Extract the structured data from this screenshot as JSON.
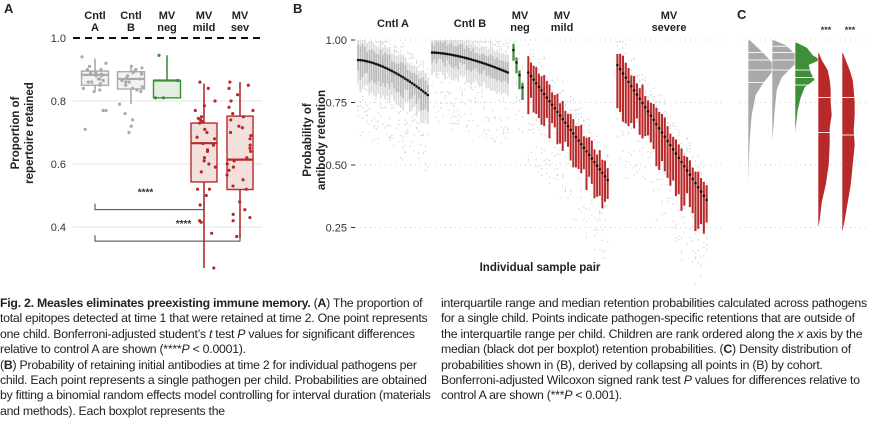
{
  "chart_data": [
    {
      "panel": "A",
      "type": "box",
      "ylabel": "Proportion of\nrepertoire retained",
      "ylim": [
        0.25,
        1.02
      ],
      "yticks": [
        1.0,
        0.8,
        0.6,
        0.4
      ],
      "ytick_labels": [
        "1.0",
        "0.8",
        "0.6",
        "0.4"
      ],
      "reference_line": 1.0,
      "categories": [
        {
          "label": "Cntl\nA",
          "color": "#aaaaaa",
          "fill": "#f2f2f2",
          "q1": 0.85,
          "median": 0.883,
          "q3": 0.895,
          "whisker_low": 0.833,
          "whisker_high": 0.935,
          "points": [
            0.94,
            0.92,
            0.91,
            0.9,
            0.9,
            0.89,
            0.89,
            0.885,
            0.88,
            0.88,
            0.87,
            0.87,
            0.865,
            0.86,
            0.86,
            0.855,
            0.85,
            0.84,
            0.835,
            0.83,
            0.77,
            0.77,
            0.71
          ]
        },
        {
          "label": "Cntl\nB",
          "color": "#aaaaaa",
          "fill": "#f2f2f2",
          "q1": 0.838,
          "median": 0.87,
          "q3": 0.893,
          "whisker_low": 0.79,
          "whisker_high": 0.905,
          "points": [
            0.91,
            0.905,
            0.9,
            0.895,
            0.89,
            0.89,
            0.885,
            0.88,
            0.875,
            0.87,
            0.87,
            0.865,
            0.86,
            0.86,
            0.85,
            0.845,
            0.84,
            0.835,
            0.83,
            0.79,
            0.76,
            0.74,
            0.72,
            0.7
          ]
        },
        {
          "label": "MV\nneg",
          "color": "#3f8f3a",
          "fill": "#e3ede0",
          "q1": 0.81,
          "median": 0.865,
          "q3": 0.865,
          "whisker_low": 0.81,
          "whisker_high": 0.945,
          "points": [
            0.945,
            0.865,
            0.81,
            0.81
          ]
        },
        {
          "label": "MV\nmild",
          "color": "#b82a2a",
          "fill": "#f3e0dc",
          "q1": 0.543,
          "median": 0.666,
          "q3": 0.73,
          "whisker_low": 0.27,
          "whisker_high": 0.855,
          "points": [
            0.86,
            0.84,
            0.8,
            0.785,
            0.77,
            0.75,
            0.745,
            0.74,
            0.735,
            0.73,
            0.71,
            0.7,
            0.685,
            0.68,
            0.665,
            0.66,
            0.645,
            0.64,
            0.62,
            0.61,
            0.6,
            0.59,
            0.575,
            0.52,
            0.52,
            0.5,
            0.47,
            0.42,
            0.415,
            0.38,
            0.27
          ]
        },
        {
          "label": "MV\nsev",
          "color": "#b82a2a",
          "fill": "#f3e0dc",
          "q1": 0.519,
          "median": 0.614,
          "q3": 0.752,
          "whisker_low": 0.365,
          "whisker_high": 0.86,
          "points": [
            0.86,
            0.85,
            0.84,
            0.82,
            0.8,
            0.78,
            0.77,
            0.76,
            0.75,
            0.74,
            0.72,
            0.715,
            0.7,
            0.69,
            0.68,
            0.66,
            0.65,
            0.64,
            0.62,
            0.61,
            0.6,
            0.59,
            0.58,
            0.565,
            0.55,
            0.53,
            0.52,
            0.48,
            0.455,
            0.44,
            0.43,
            0.42,
            0.37
          ]
        }
      ],
      "significance": [
        {
          "from": "Cntl A",
          "to": "MV mild",
          "label": "****",
          "y": 0.455
        },
        {
          "from": "Cntl A",
          "to": "MV sev",
          "label": "****",
          "y": 0.355
        }
      ]
    },
    {
      "panel": "B",
      "type": "box",
      "xlabel": "Individual sample pair",
      "ylabel": "Probability of\nantibody retention",
      "ylim": [
        0.18,
        1.01
      ],
      "yticks": [
        1.0,
        0.75,
        0.5,
        0.25
      ],
      "ytick_labels": [
        "1.00",
        "0.75",
        "0.50",
        "0.25"
      ],
      "groups": [
        {
          "label": "Cntl  A",
          "color": "#b5b5b5",
          "n": 32,
          "median_start": 0.92,
          "median_end": 0.78,
          "iqr_low": 0.06,
          "iqr_high": 0.05
        },
        {
          "label": "Cntl  B",
          "color": "#b5b5b5",
          "n": 36,
          "median_start": 0.95,
          "median_end": 0.87,
          "iqr_low": 0.04,
          "iqr_high": 0.04
        },
        {
          "label": "MV\nneg",
          "color": "#3f8f3a",
          "n": 4,
          "median_start": 0.96,
          "median_end": 0.81,
          "iqr_low": 0.06,
          "iqr_high": 0.02
        },
        {
          "label": "MV\nmild",
          "color": "#b82a2a",
          "n": 31,
          "median_start": 0.87,
          "median_end": 0.44,
          "iqr_low": 0.12,
          "iqr_high": 0.06
        },
        {
          "label": "MV\nsevere",
          "color": "#b82a2a",
          "n": 33,
          "median_start": 0.9,
          "median_end": 0.36,
          "iqr_low": 0.14,
          "iqr_high": 0.06
        }
      ]
    },
    {
      "panel": "C",
      "type": "density",
      "cohorts": [
        {
          "name": "Cntl A",
          "color": "#a9a9a9",
          "significance": "",
          "quantile_lines": [
            0.95,
            0.92,
            0.88,
            0.83
          ]
        },
        {
          "name": "Cntl B",
          "color": "#a9a9a9",
          "significance": "",
          "quantile_lines": [
            0.975,
            0.95,
            0.92,
            0.88
          ]
        },
        {
          "name": "MV neg",
          "color": "#3f8f3a",
          "significance": "",
          "quantile_lines": [
            0.88,
            0.85,
            0.82
          ]
        },
        {
          "name": "MV mild",
          "color": "#b82a2a",
          "significance": "***",
          "quantile_lines": [
            0.77,
            0.63
          ]
        },
        {
          "name": "MV severe",
          "color": "#b82a2a",
          "significance": "***",
          "quantile_lines": [
            0.77,
            0.62
          ]
        }
      ]
    }
  ],
  "panel_letters": {
    "a": "A",
    "b": "B",
    "c": "C"
  },
  "caption": {
    "title": "Fig. 2. Measles eliminates preexisting immune memory.",
    "a_label": "A",
    "a_text_1": " The proportion of total epitopes detected at time 1 that were retained at time 2. One point represents one child. Bonferroni-adjusted student’s ",
    "t": "t",
    "a_text_2": " test ",
    "p1": "P",
    "a_text_3": " values for significant differences relative to control A are shown (****",
    "p2": "P",
    "a_text_4": " < 0.0001).",
    "b_label": "B",
    "b_text_1": " Probability of retaining initial antibodies at time 2 for individual pathogens per child. Each point represents a single pathogen per child. Probabilities are obtained by fitting a binomial random effects model controlling for interval duration (materials and methods). Each boxplot represents the",
    "b_text_2": "interquartile range and median retention probabilities calculated across pathogens for a single child. Points indicate pathogen-specific retentions that are outside of the interquartile range per child. Children are rank ordered along the ",
    "x": "x",
    "b_text_3": " axis by the median (black dot per boxplot) retention probabilities.",
    "c_label": "C",
    "c_text_1": " Density distribution of probabilities shown in (B), derived by collapsing all points in (B) by cohort. Bonferroni-adjusted Wilcoxon signed rank test ",
    "p3": "P",
    "c_text_2": " values for differences relative to control A are shown (***",
    "p4": "P",
    "c_text_3": " < 0.001)."
  }
}
